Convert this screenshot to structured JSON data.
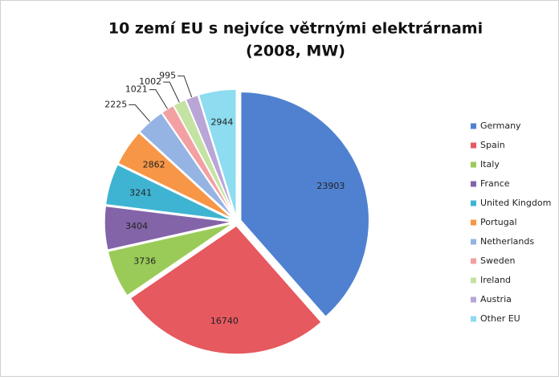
{
  "chart_data": {
    "type": "pie",
    "title": [
      "10 zemí EU s nejvíce větrnými elektrárnami",
      "(2008, MW)"
    ],
    "categories": [
      "Germany",
      "Spain",
      "Italy",
      "France",
      "United Kingdom",
      "Portugal",
      "Netherlands",
      "Sweden",
      "Ireland",
      "Austria",
      "Other EU"
    ],
    "values": [
      23903,
      16740,
      3736,
      3404,
      3241,
      2862,
      2225,
      1021,
      1002,
      995,
      2944
    ],
    "colors": [
      "#4f81d0",
      "#e5595f",
      "#9acb58",
      "#8464a8",
      "#3fb4d2",
      "#f79646",
      "#95b4e4",
      "#f3a0a3",
      "#c4e3a2",
      "#b9a5d6",
      "#8ddcf0"
    ],
    "legend": "right"
  }
}
